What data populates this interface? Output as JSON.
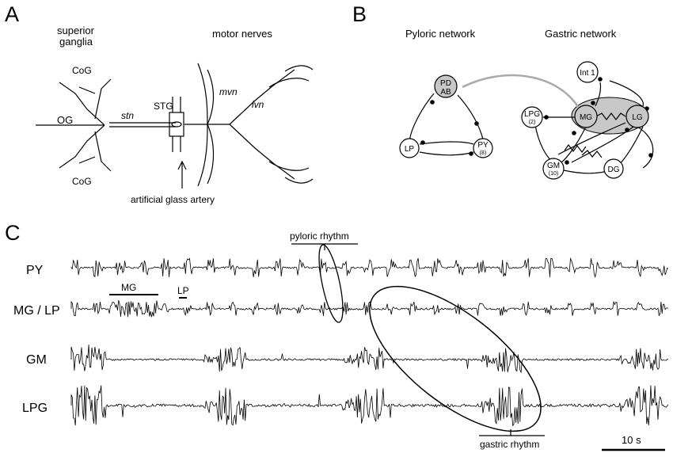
{
  "panels": {
    "a": {
      "letter": "A",
      "superior_ganglia_line1": "superior",
      "superior_ganglia_line2": "ganglia",
      "motor_nerves": "motor nerves",
      "cog_top": "CoG",
      "cog_bottom": "CoG",
      "og": "OG",
      "stn": "stn",
      "stg": "STG",
      "mvn": "mvn",
      "lvn": "lvn",
      "artery": "artificial glass artery"
    },
    "b": {
      "letter": "B",
      "pyloric_title": "Pyloric network",
      "gastric_title": "Gastric network",
      "nodes": {
        "pd": {
          "line1": "PD",
          "line2": "AB"
        },
        "lp": {
          "line1": "LP"
        },
        "py": {
          "line1": "PY",
          "line2": "(8)"
        },
        "int1": {
          "line1": "Int 1"
        },
        "lpg": {
          "line1": "LPG",
          "line2": "(2)"
        },
        "mg": {
          "line1": "MG"
        },
        "lg": {
          "line1": "LG"
        },
        "gm": {
          "line1": "GM",
          "line2": "(10)"
        },
        "dg": {
          "line1": "DG"
        }
      }
    },
    "c": {
      "letter": "C",
      "pyloric_rhythm": "pyloric rhythm",
      "gastric_rhythm": "gastric rhythm",
      "mg_marker": "MG",
      "lp_marker": "LP",
      "scale_bar": "10 s",
      "traces": [
        {
          "label": "PY",
          "pattern": "pyloric"
        },
        {
          "label": "MG / LP",
          "pattern": "mixed"
        },
        {
          "label": "GM",
          "pattern": "gastric"
        },
        {
          "label": "LPG",
          "pattern": "gastric"
        }
      ]
    }
  },
  "colors": {
    "ink": "#000000",
    "node_fill": "#ffffff",
    "highlight_fill": "#c8c8c8",
    "pd_link": "#aaaaaa"
  }
}
